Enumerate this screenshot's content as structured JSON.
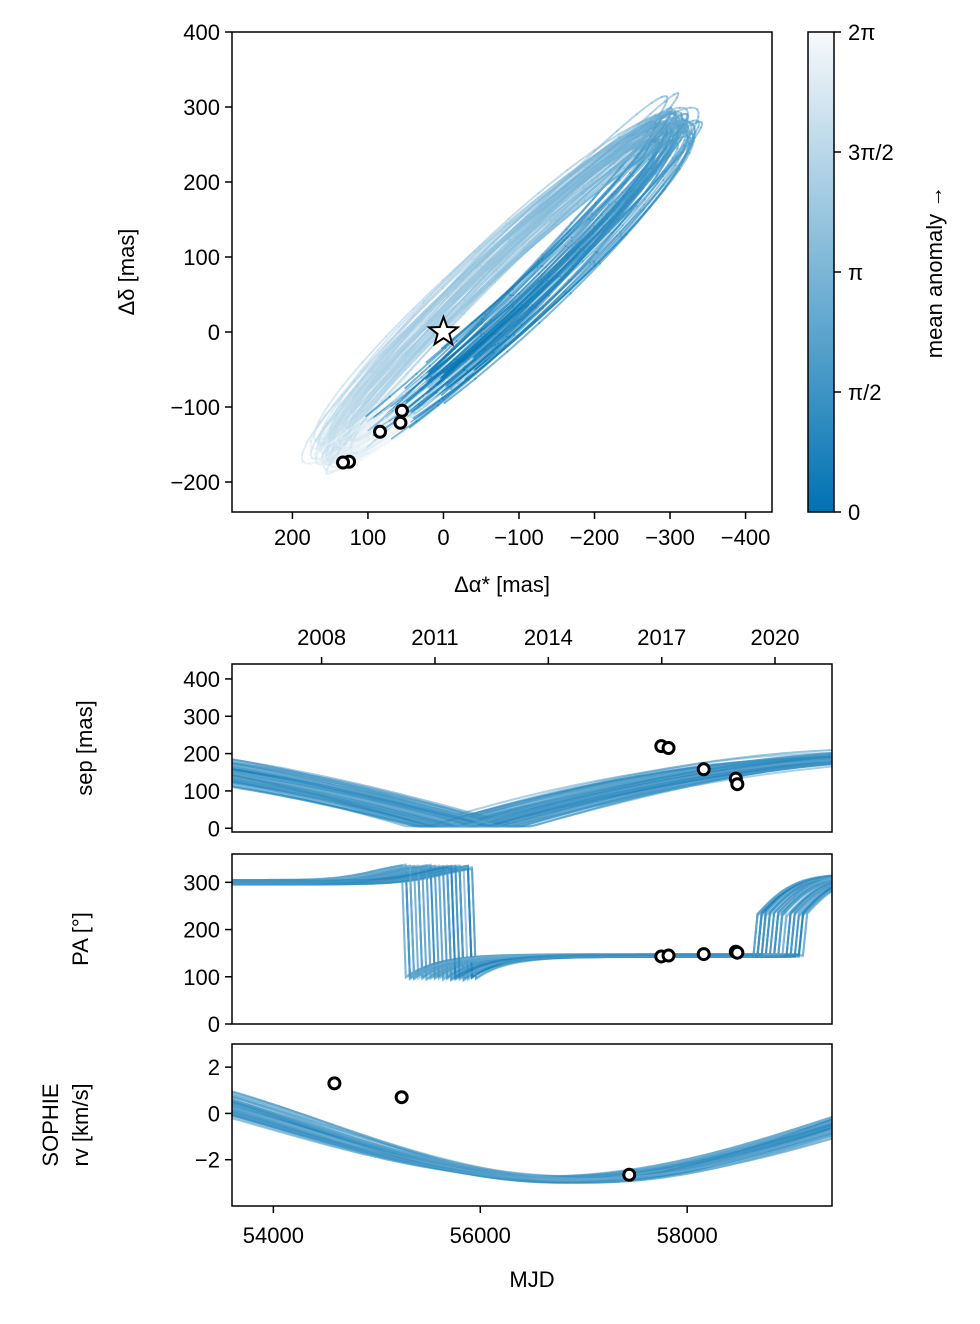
{
  "chart_data": [
    {
      "type": "line",
      "panel": "astrometry",
      "xlabel": "Δα* [mas]",
      "ylabel": "Δδ [mas]",
      "xlim": [
        280,
        -435
      ],
      "ylim": [
        -240,
        400
      ],
      "x_ticks": [
        200,
        100,
        0,
        -100,
        -200,
        -300,
        -400
      ],
      "x_tick_labels": [
        "200",
        "100",
        "0",
        "−100",
        "−200",
        "−300",
        "−400"
      ],
      "y_ticks": [
        400,
        300,
        200,
        100,
        0,
        -100,
        -200
      ],
      "y_tick_labels": [
        "400",
        "300",
        "200",
        "100",
        "0",
        "−100",
        "−200"
      ],
      "star": {
        "x": 0,
        "y": 0,
        "marker": "star"
      },
      "observations": [
        {
          "x": 55,
          "y": -105
        },
        {
          "x": 57,
          "y": -121
        },
        {
          "x": 84,
          "y": -133
        },
        {
          "x": 125,
          "y": -173
        },
        {
          "x": 133,
          "y": -174
        }
      ],
      "orbit_model": {
        "center": [
          -80,
          60
        ],
        "semi_major_axis_range": [
          290,
          340
        ],
        "semi_minor_axis_range": [
          16,
          58
        ],
        "position_angle_deg_range": [
          41,
          47
        ],
        "periastron_anomaly_range": [
          3.7,
          4.3
        ],
        "count": 60
      },
      "colorbar": {
        "label": "mean anomaly →",
        "range": [
          0,
          6.283185
        ],
        "ticks": [
          0,
          1.5708,
          3.1416,
          4.7124,
          6.2832
        ],
        "tick_labels": [
          "0",
          "π/2",
          "π",
          "3π/2",
          "2π"
        ],
        "colors": [
          "#0072B2",
          "#f7f9fb"
        ]
      }
    },
    {
      "type": "line",
      "panel": "separation",
      "ylabel": "sep [mas]",
      "xlim": [
        53600,
        59400
      ],
      "ylim": [
        -10,
        440
      ],
      "y_ticks": [
        0,
        100,
        200,
        300,
        400
      ],
      "y_tick_labels": [
        "0",
        "100",
        "200",
        "300",
        "400"
      ],
      "top_axis_ticks": [
        54466,
        55562,
        56658,
        57754,
        58849
      ],
      "top_axis_labels": [
        "2008",
        "2011",
        "2014",
        "2017",
        "2020"
      ],
      "observations": [
        {
          "x": 57750,
          "y": 220
        },
        {
          "x": 57820,
          "y": 215
        },
        {
          "x": 58160,
          "y": 158
        },
        {
          "x": 58470,
          "y": 133
        },
        {
          "x": 58485,
          "y": 118
        }
      ]
    },
    {
      "type": "line",
      "panel": "position_angle",
      "ylabel": "PA [°]",
      "xlim": [
        53600,
        59400
      ],
      "ylim": [
        0,
        360
      ],
      "y_ticks": [
        0,
        100,
        200,
        300
      ],
      "y_tick_labels": [
        "0",
        "100",
        "200",
        "300"
      ],
      "observations": [
        {
          "x": 57750,
          "y": 143
        },
        {
          "x": 57820,
          "y": 145
        },
        {
          "x": 58160,
          "y": 148
        },
        {
          "x": 58470,
          "y": 153
        },
        {
          "x": 58485,
          "y": 151
        }
      ]
    },
    {
      "type": "line",
      "panel": "radial_velocity",
      "ylabel": "SOPHIE rv [km/s]",
      "ylabel_lines": [
        "SOPHIE",
        "rv [km/s]"
      ],
      "xlabel": "MJD",
      "xlim": [
        53600,
        59400
      ],
      "ylim": [
        -4,
        3
      ],
      "x_ticks": [
        54000,
        56000,
        58000
      ],
      "x_tick_labels": [
        "54000",
        "56000",
        "58000"
      ],
      "y_ticks": [
        2,
        0,
        -2
      ],
      "y_tick_labels": [
        "2",
        "0",
        "−2"
      ],
      "observations": [
        {
          "x": 54590,
          "y": 1.3
        },
        {
          "x": 55240,
          "y": 0.7
        },
        {
          "x": 57440,
          "y": -2.65
        }
      ]
    }
  ]
}
